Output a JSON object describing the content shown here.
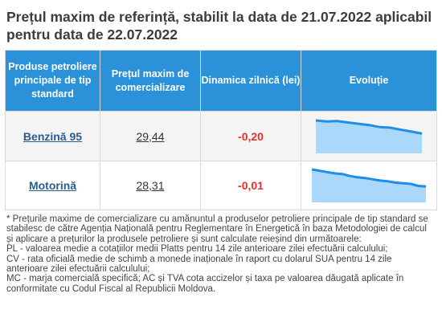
{
  "header": {
    "title": "Prețul maxim de referință, stabilit la data de 21.07.2022 aplicabil pentru data de 22.07.2022"
  },
  "table": {
    "columns": [
      "Produse petroliere principale de tip standard",
      "Prețul maxim de comercializare",
      "Dinamica zilnică (lei)",
      "Evoluție"
    ],
    "rows": [
      {
        "product": "Benzină 95",
        "price": "29,44",
        "delta": "-0,20",
        "trend": [
          1.0,
          0.97,
          0.98,
          0.94,
          0.9,
          0.86,
          0.8,
          0.78,
          0.72,
          0.66,
          0.6
        ]
      },
      {
        "product": "Motorină",
        "price": "28,31",
        "delta": "-0,01",
        "trend": [
          1.0,
          0.96,
          0.92,
          0.88,
          0.86,
          0.8,
          0.76,
          0.74,
          0.7,
          0.66,
          0.64,
          0.6,
          0.58,
          0.56,
          0.5,
          0.48
        ]
      }
    ]
  },
  "notes": [
    "* Prețurile maxime de comercializare cu amănuntul a produselor petroliere principale de tip standard se stabilesc de către Agenția Națională pentru Reglementare în Energetică în baza Metodologiei de calcul și aplicare a prețurilor la produsele petroliere și sunt calculate reieșind din următoarele:",
    "PL - valoarea medie a cotațiilor medii Platts pentru 14 zile anterioare zilei efectuării calculului;",
    "CV - rata oficială medie de schimb a monede inaționale în raport cu dolarul SUA pentru 14 zile anterioare zilei efectuării calculului;",
    "MC - marja comercială specifică; AC și TVA cota accizelor și taxa pe valoarea dăugată aplicate în conformitate cu Codul Fiscal al Republicii Moldova."
  ],
  "colors": {
    "header_bg": "#2b92d9",
    "negative": "#e8302d",
    "link": "#2a5c8e",
    "spark_line": "#1f8ee6",
    "spark_fill": "#a9d8fb"
  }
}
